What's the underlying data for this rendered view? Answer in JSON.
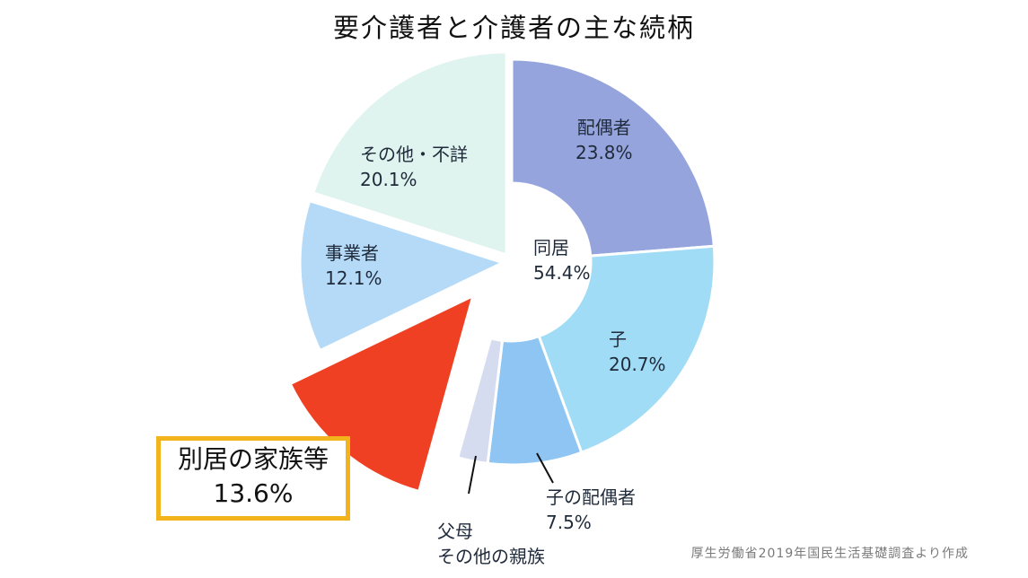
{
  "title": "要介護者と介護者の主な続柄",
  "source_note": "厚生労働省2019年国民生活基礎調査より作成",
  "center_label": {
    "name": "同居",
    "value": "54.4%"
  },
  "highlight": {
    "name": "別居の家族等",
    "value": "13.6%"
  },
  "labels": {
    "spouse": {
      "name": "配偶者",
      "value": "23.8%"
    },
    "child": {
      "name": "子",
      "value": "20.7%"
    },
    "child_spouse": {
      "name": "子の配偶者",
      "value": "7.5%"
    },
    "parents_other": {
      "line1": "父母",
      "line2": "その他の親族"
    },
    "business": {
      "name": "事業者",
      "value": "12.1%"
    },
    "other_unknown": {
      "name": "その他・不詳",
      "value": "20.1%"
    }
  },
  "colors": {
    "spouse": "#95a4dd",
    "child": "#a0dcf5",
    "child_spouse": "#8ec5f2",
    "parents_other": "#d6dcf0",
    "separate_family": "#ef4023",
    "business": "#b5daf8",
    "other_unknown": "#dff3ef",
    "highlight_border": "#f2b31c"
  },
  "chart_data": {
    "type": "pie",
    "title": "要介護者と介護者の主な続柄",
    "style": "donut-for-cohabiting-group, exploded-slice",
    "groups": [
      {
        "name": "同居",
        "value": 54.4,
        "members": [
          "配偶者",
          "子",
          "子の配偶者",
          "父母・その他の親族"
        ]
      }
    ],
    "categories": [
      "配偶者",
      "子",
      "子の配偶者",
      "父母・その他の親族",
      "別居の家族等",
      "事業者",
      "その他・不詳"
    ],
    "values": [
      23.8,
      20.7,
      7.5,
      2.4,
      13.6,
      12.1,
      20.1
    ],
    "unit": "%",
    "exploded": "別居の家族等",
    "annotations": [
      "同居 54.4%",
      "厚生労働省2019年国民生活基礎調査より作成"
    ]
  }
}
